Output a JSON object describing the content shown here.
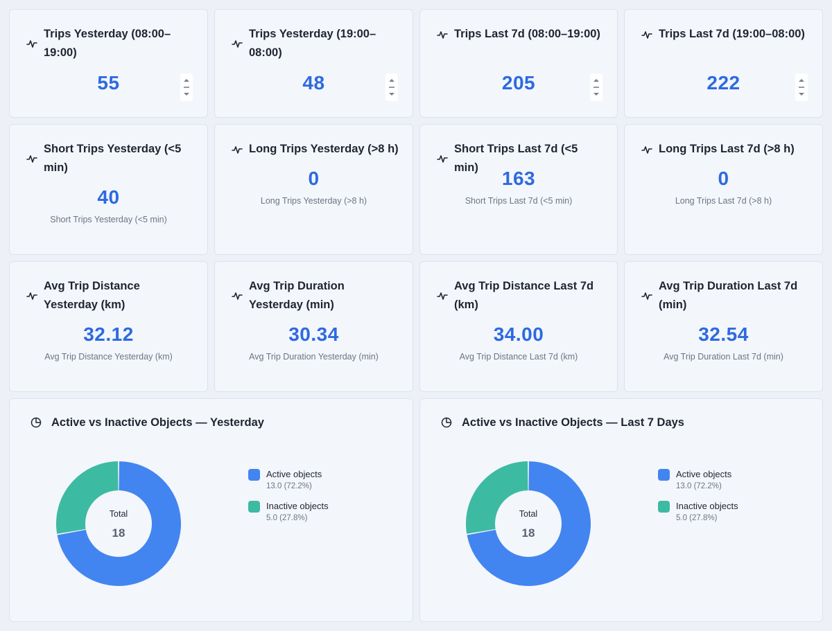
{
  "kpis": [
    {
      "title": "Trips Yesterday (08:00–19:00)",
      "value": "55",
      "has_stepper": true
    },
    {
      "title": "Trips Yesterday (19:00–08:00)",
      "value": "48",
      "has_stepper": true
    },
    {
      "title": "Trips Last 7d (08:00–19:00)",
      "value": "205",
      "has_stepper": true
    },
    {
      "title": "Trips Last 7d (19:00–08:00)",
      "value": "222",
      "has_stepper": true
    },
    {
      "title": "Short Trips Yesterday (<5 min)",
      "value": "40",
      "subtitle": "Short Trips Yesterday (<5 min)"
    },
    {
      "title": "Long Trips Yesterday (>8 h)",
      "value": "0",
      "subtitle": "Long Trips Yesterday (>8 h)"
    },
    {
      "title": "Short Trips Last 7d (<5 min)",
      "value": "163",
      "subtitle": "Short Trips Last 7d (<5 min)"
    },
    {
      "title": "Long Trips Last 7d (>8 h)",
      "value": "0",
      "subtitle": "Long Trips Last 7d (>8 h)"
    },
    {
      "title": "Avg Trip Distance Yesterday (km)",
      "value": "32.12",
      "subtitle": "Avg Trip Distance Yesterday (km)"
    },
    {
      "title": "Avg Trip Duration Yesterday (min)",
      "value": "30.34",
      "subtitle": "Avg Trip Duration Yesterday (min)"
    },
    {
      "title": "Avg Trip Distance Last 7d (km)",
      "value": "34.00",
      "subtitle": "Avg Trip Distance Last 7d (km)"
    },
    {
      "title": "Avg Trip Duration Last 7d (min)",
      "value": "32.54",
      "subtitle": "Avg Trip Duration Last 7d (min)"
    }
  ],
  "icons": {
    "kpi": "pulse-icon",
    "pie": "pie-chart-icon",
    "stepper": "stepper-arrows-icon"
  },
  "colors": {
    "active": "#4285f0",
    "inactive": "#3dbaa2",
    "value": "#2d6ae0"
  },
  "pies": [
    {
      "title": "Active vs Inactive Objects — Yesterday",
      "total_label": "Total",
      "total_value": "18",
      "legend": [
        {
          "name": "Active objects",
          "value_text": "13.0 (72.2%)"
        },
        {
          "name": "Inactive objects",
          "value_text": "5.0 (27.8%)"
        }
      ]
    },
    {
      "title": "Active vs Inactive Objects — Last 7 Days",
      "total_label": "Total",
      "total_value": "18",
      "legend": [
        {
          "name": "Active objects",
          "value_text": "13.0 (72.2%)"
        },
        {
          "name": "Inactive objects",
          "value_text": "5.0 (27.8%)"
        }
      ]
    }
  ],
  "chart_data": [
    {
      "type": "pie",
      "title": "Active vs Inactive Objects — Yesterday",
      "categories": [
        "Active objects",
        "Inactive objects"
      ],
      "values": [
        13.0,
        5.0
      ],
      "legend": "right"
    },
    {
      "type": "pie",
      "title": "Active vs Inactive Objects — Last 7 Days",
      "categories": [
        "Active objects",
        "Inactive objects"
      ],
      "values": [
        13.0,
        5.0
      ],
      "legend": "right"
    }
  ]
}
